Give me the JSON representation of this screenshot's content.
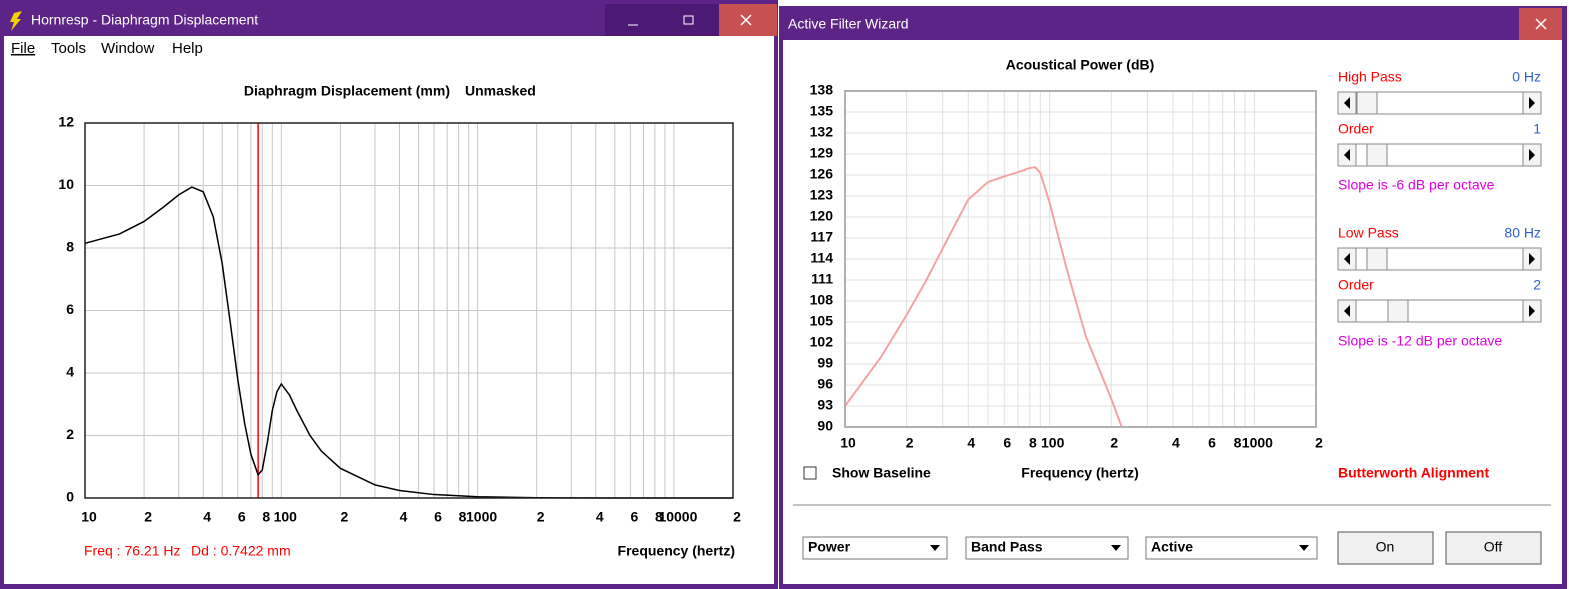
{
  "left_window": {
    "title": "Hornresp - Diaphragm Displacement",
    "menu": [
      "File",
      "Tools",
      "Window",
      "Help"
    ],
    "chart": {
      "type": "line",
      "title": "Diaphragm Displacement (mm)",
      "subtitle": "Unmasked",
      "x_label": "Frequency (hertz)",
      "x_scale": "log",
      "xlim": [
        10,
        20000
      ],
      "ylim": [
        0,
        12
      ],
      "yticks": [
        0,
        2,
        4,
        6,
        8,
        10,
        12
      ],
      "xticks": [
        10,
        {
          "value": 20,
          "label": "2"
        },
        {
          "value": 40,
          "label": "4"
        },
        {
          "value": 60,
          "label": "6"
        },
        {
          "value": 80,
          "label": "8"
        },
        100,
        {
          "value": 200,
          "label": "2"
        },
        {
          "value": 400,
          "label": "4"
        },
        {
          "value": 600,
          "label": "6"
        },
        {
          "value": 800,
          "label": "8"
        },
        1000,
        {
          "value": 2000,
          "label": "2"
        },
        {
          "value": 4000,
          "label": "4"
        },
        {
          "value": 6000,
          "label": "6"
        },
        {
          "value": 8000,
          "label": "8"
        },
        10000,
        {
          "value": 20000,
          "label": "2"
        }
      ],
      "minor_grid": [
        30,
        50,
        70,
        90,
        300,
        500,
        700,
        900,
        3000,
        5000,
        7000,
        9000
      ],
      "grid": true,
      "grid_color": "#c8c8c8",
      "series": [
        {
          "color": "#000000",
          "x": [
            10,
            15,
            20,
            25,
            30,
            35,
            40,
            45,
            50,
            55,
            60,
            65,
            70,
            76.21,
            80,
            85,
            90,
            95,
            100,
            110,
            120,
            140,
            160,
            200,
            300,
            400,
            600,
            1000,
            2000,
            5000,
            20000
          ],
          "values": [
            8.15,
            8.45,
            8.85,
            9.3,
            9.7,
            9.95,
            9.8,
            9.0,
            7.5,
            5.6,
            3.8,
            2.4,
            1.4,
            0.74,
            0.9,
            1.8,
            2.8,
            3.4,
            3.65,
            3.3,
            2.8,
            2.0,
            1.5,
            0.95,
            0.42,
            0.24,
            0.11,
            0.04,
            0.01,
            0,
            0
          ]
        }
      ],
      "cursor": {
        "x": 76.21,
        "color": "#ff0000"
      },
      "readout": [
        "Freq : 76.21 Hz",
        "Dd : 0.7422 mm"
      ]
    }
  },
  "right_window": {
    "title": "Active Filter Wizard",
    "chart": {
      "type": "line",
      "title": "Acoustical Power (dB)",
      "x_label": "Frequency (hertz)",
      "x_scale": "log",
      "xlim": [
        10,
        2000
      ],
      "ylim": [
        90,
        138
      ],
      "yticks": [
        90,
        93,
        96,
        99,
        102,
        105,
        108,
        111,
        114,
        117,
        120,
        123,
        126,
        129,
        132,
        135,
        138
      ],
      "xticks": [
        10,
        {
          "value": 20,
          "label": "2"
        },
        {
          "value": 40,
          "label": "4"
        },
        {
          "value": 60,
          "label": "6"
        },
        {
          "value": 80,
          "label": "8"
        },
        100,
        {
          "value": 200,
          "label": "2"
        },
        {
          "value": 400,
          "label": "4"
        },
        {
          "value": 600,
          "label": "6"
        },
        {
          "value": 800,
          "label": "8"
        },
        1000,
        {
          "value": 2000,
          "label": "2"
        }
      ],
      "minor_grid": [
        30,
        50,
        70,
        90,
        300,
        500,
        700,
        900
      ],
      "grid": true,
      "grid_color": "#e0e0e0",
      "series": [
        {
          "color": "#f4a3a3",
          "x": [
            10,
            15,
            20,
            25,
            30,
            40,
            50,
            60,
            70,
            80,
            85,
            90,
            100,
            120,
            150,
            200,
            225
          ],
          "values": [
            93,
            100,
            106,
            111,
            115.5,
            122.5,
            125,
            125.8,
            126.4,
            127,
            127.1,
            126.3,
            122,
            113,
            103,
            94,
            90
          ]
        }
      ]
    },
    "filters": {
      "high_pass": {
        "label": "High Pass",
        "value": "0 Hz"
      },
      "high_order": {
        "label": "Order",
        "value": "1"
      },
      "high_slope": "Slope is -6 dB per octave",
      "low_pass": {
        "label": "Low Pass",
        "value": "80 Hz"
      },
      "low_order": {
        "label": "Order",
        "value": "2"
      },
      "low_slope": "Slope is -12 dB per octave"
    },
    "show_baseline": "Show Baseline",
    "alignment": "Butterworth Alignment",
    "dropdowns": [
      "Power",
      "Band Pass",
      "Active"
    ],
    "buttons": [
      "On",
      "Off"
    ]
  }
}
